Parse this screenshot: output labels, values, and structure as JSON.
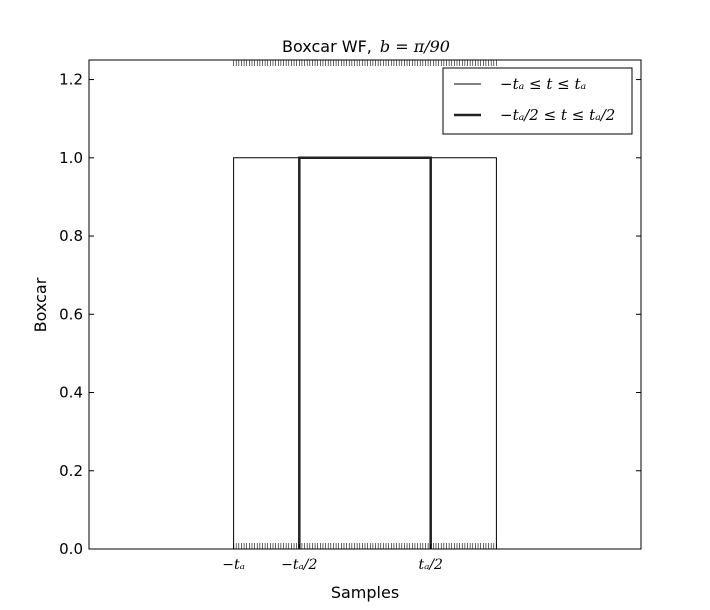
{
  "chart_data": {
    "type": "line",
    "title_text": "Boxcar WF,",
    "title_math": "b = π/90",
    "xlabel": "Samples",
    "ylabel": "Boxcar",
    "ylim": [
      0,
      1.25
    ],
    "x_ticks": [
      {
        "label": "−tₐ",
        "x": -1.0
      },
      {
        "label": "−tₐ/2",
        "x": -0.5
      },
      {
        "label": "tₐ/2",
        "x": 0.5
      }
    ],
    "xlim": [
      -2.1,
      2.1
    ],
    "y_ticks": [
      "0.0",
      "0.2",
      "0.4",
      "0.6",
      "0.8",
      "1.0",
      "1.2"
    ],
    "series": [
      {
        "name": "−tₐ ≤ t ≤ tₐ",
        "x": [
          -1.0,
          -1.0,
          1.0,
          1.0
        ],
        "y": [
          0.0,
          1.0,
          1.0,
          0.0
        ],
        "color": "#000000",
        "weight": "thin"
      },
      {
        "name": "−tₐ/2 ≤ t ≤ tₐ/2",
        "x": [
          -0.5,
          -0.5,
          0.5,
          0.5
        ],
        "y": [
          0.0,
          1.0,
          1.0,
          0.0
        ],
        "color": "#222222",
        "weight": "thick"
      }
    ],
    "rug": {
      "x_range": [
        -1.0,
        1.0
      ],
      "count": 101,
      "positions": [
        "bottom",
        "top"
      ]
    },
    "legend_position": "top-right",
    "grid": false
  }
}
